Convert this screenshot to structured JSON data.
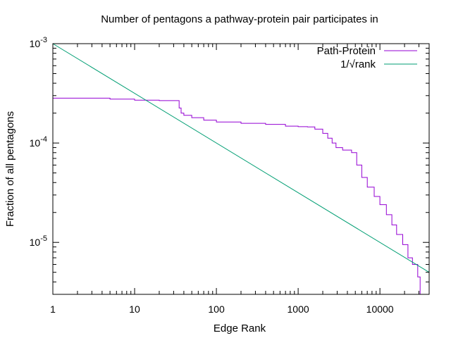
{
  "chart_data": {
    "type": "line",
    "title": "Number of pentagons a pathway-protein pair participates in",
    "xlabel": "Edge Rank",
    "ylabel": "Fraction of all pentagons",
    "x_scale": "log",
    "y_scale": "log",
    "xlim": [
      1,
      40000
    ],
    "ylim": [
      3e-06,
      0.001
    ],
    "x_ticks": [
      {
        "value": 1,
        "label": "1"
      },
      {
        "value": 10,
        "label": "10"
      },
      {
        "value": 100,
        "label": "100"
      },
      {
        "value": 1000,
        "label": "1000"
      },
      {
        "value": 10000,
        "label": "10000"
      }
    ],
    "y_ticks": [
      {
        "value": 0.001,
        "base": "10",
        "exp": "-3"
      },
      {
        "value": 0.0001,
        "base": "10",
        "exp": "-4"
      },
      {
        "value": 1e-05,
        "base": "10",
        "exp": "-5"
      }
    ],
    "grid": false,
    "legend_position": "top-right",
    "series": [
      {
        "name": "Path-Protein",
        "color": "#9400d3",
        "style": "steps",
        "points": [
          [
            1,
            0.000283
          ],
          [
            5,
            0.000277
          ],
          [
            10,
            0.00027
          ],
          [
            20,
            0.000267
          ],
          [
            33,
            0.000267
          ],
          [
            35,
            0.000225
          ],
          [
            37,
            0.0002
          ],
          [
            40,
            0.00019
          ],
          [
            50,
            0.00018
          ],
          [
            70,
            0.00017
          ],
          [
            100,
            0.000163
          ],
          [
            200,
            0.000158
          ],
          [
            400,
            0.000154
          ],
          [
            700,
            0.000148
          ],
          [
            1000,
            0.000146
          ],
          [
            1300,
            0.000145
          ],
          [
            1600,
            0.000138
          ],
          [
            2000,
            0.000125
          ],
          [
            2300,
            0.000112
          ],
          [
            2600,
            0.0001
          ],
          [
            2900,
            9e-05
          ],
          [
            3500,
            8.5e-05
          ],
          [
            4500,
            8e-05
          ],
          [
            5200,
            6e-05
          ],
          [
            6000,
            4.5e-05
          ],
          [
            7000,
            3.6e-05
          ],
          [
            8500,
            2.9e-05
          ],
          [
            10000,
            2.4e-05
          ],
          [
            12000,
            1.9e-05
          ],
          [
            14000,
            1.5e-05
          ],
          [
            16000,
            1.2e-05
          ],
          [
            19000,
            9.5e-06
          ],
          [
            22000,
            7e-06
          ],
          [
            25000,
            6e-06
          ],
          [
            29000,
            4.5e-06
          ],
          [
            31000,
            3e-06
          ]
        ]
      },
      {
        "name": "1/√rank",
        "color": "#009e73",
        "style": "line",
        "formula": "0.001/sqrt(x)",
        "points": [
          [
            1,
            0.001
          ],
          [
            40000,
            5e-06
          ]
        ]
      }
    ]
  }
}
